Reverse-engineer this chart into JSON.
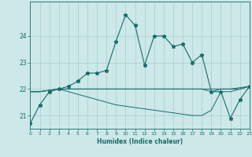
{
  "xlabel": "Humidex (Indice chaleur)",
  "bg_color": "#cce8e8",
  "line_color": "#1a6b6b",
  "grid_color": "#b8d8d8",
  "x_values": [
    0,
    1,
    2,
    3,
    4,
    5,
    6,
    7,
    8,
    9,
    10,
    11,
    12,
    13,
    14,
    15,
    16,
    17,
    18,
    19,
    20,
    21,
    22,
    23
  ],
  "line1": [
    20.7,
    21.4,
    21.9,
    22.0,
    22.1,
    22.3,
    22.6,
    22.6,
    22.7,
    23.8,
    24.8,
    24.4,
    22.9,
    24.0,
    24.0,
    23.6,
    23.7,
    23.0,
    23.3,
    21.9,
    21.9,
    20.9,
    21.6,
    22.1
  ],
  "line2": [
    21.9,
    21.9,
    21.95,
    22.0,
    22.0,
    22.0,
    22.0,
    22.0,
    22.0,
    22.0,
    22.0,
    22.0,
    22.0,
    22.0,
    22.0,
    22.0,
    22.0,
    22.0,
    22.0,
    22.0,
    22.0,
    22.0,
    22.0,
    22.1
  ],
  "line3": [
    21.9,
    21.9,
    21.95,
    22.0,
    22.0,
    22.0,
    22.0,
    22.0,
    22.0,
    22.0,
    22.0,
    22.0,
    22.0,
    22.0,
    22.0,
    22.0,
    22.0,
    22.0,
    22.0,
    21.9,
    22.0,
    22.0,
    22.05,
    22.1
  ],
  "line4": [
    21.9,
    21.9,
    21.95,
    22.0,
    21.9,
    21.8,
    21.7,
    21.6,
    21.5,
    21.4,
    21.35,
    21.3,
    21.25,
    21.2,
    21.15,
    21.1,
    21.05,
    21.0,
    21.0,
    21.2,
    21.9,
    21.9,
    22.0,
    22.1
  ],
  "ylim": [
    20.5,
    25.3
  ],
  "yticks": [
    21,
    22,
    23,
    24
  ],
  "xlim": [
    0,
    23
  ]
}
